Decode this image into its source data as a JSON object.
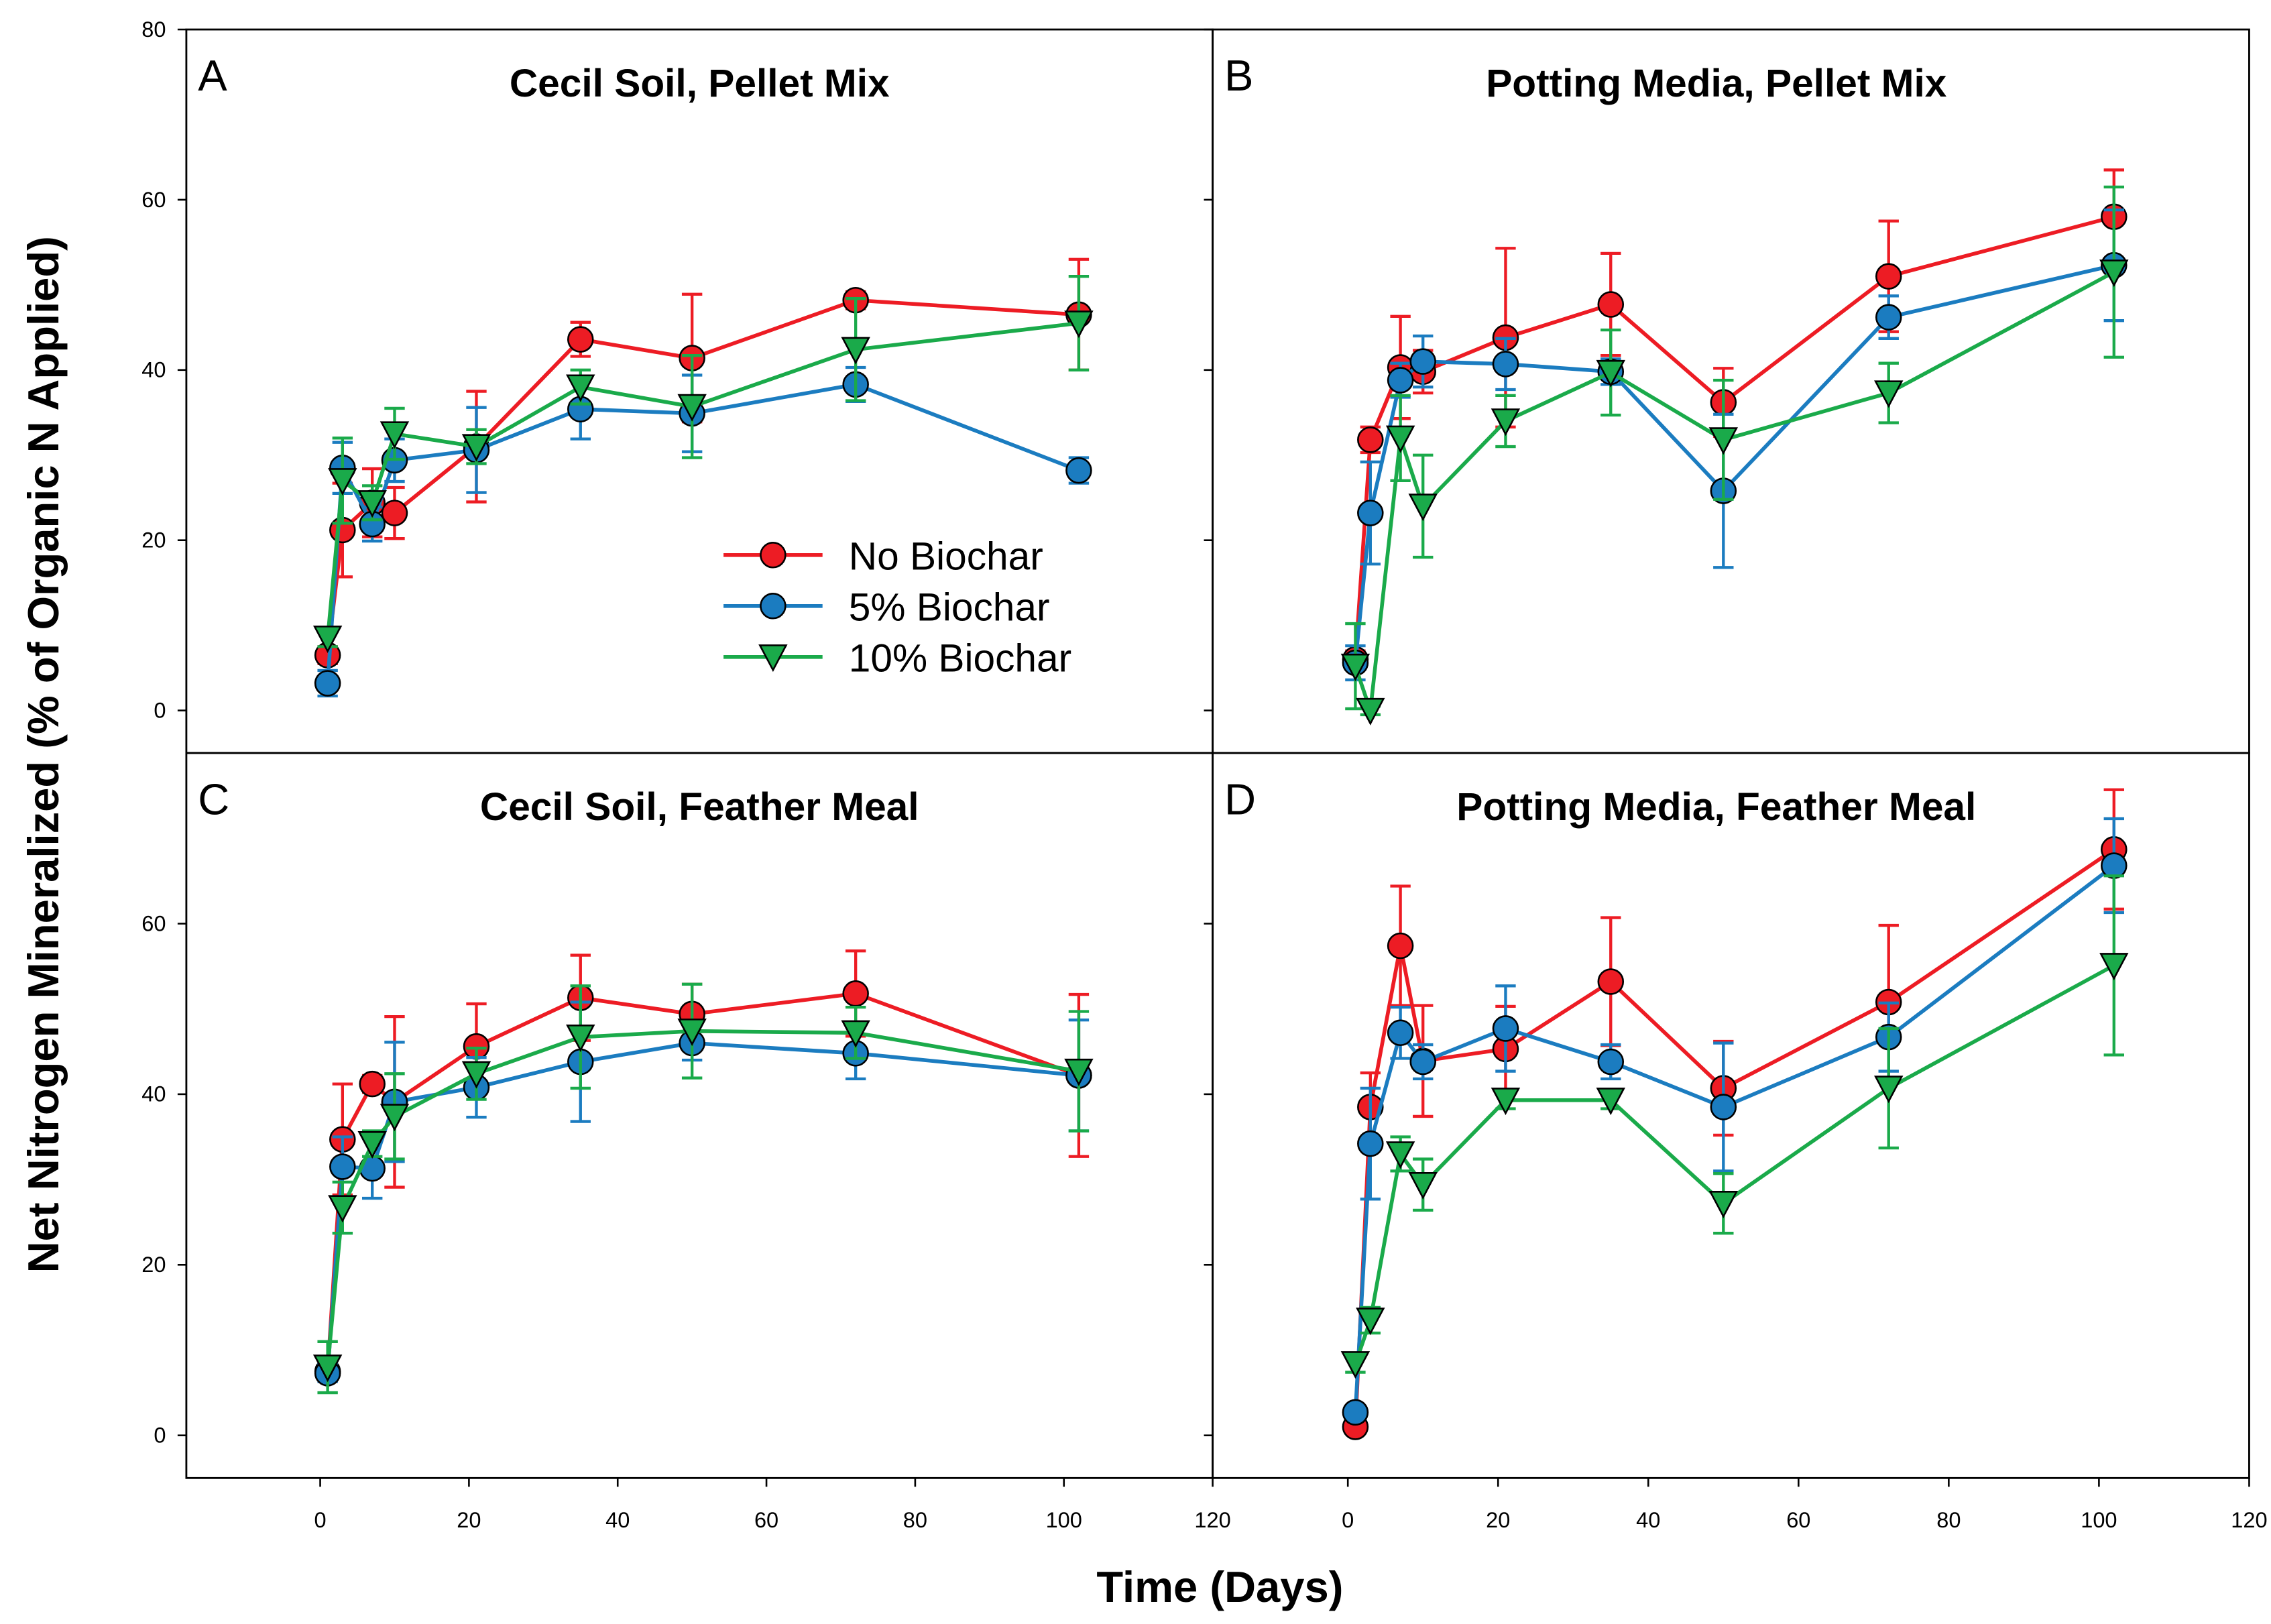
{
  "chart_data": {
    "type": "line",
    "ylabel": "Net Nitrogen Mineralized (% of Organic N Applied)",
    "xlabel": "Time (Days)",
    "xlim": [
      -18,
      120
    ],
    "ylim": [
      -5,
      80
    ],
    "x_ticks": [
      "0",
      "20",
      "40",
      "60",
      "80",
      "100",
      "120"
    ],
    "y_ticks_top": [
      "0",
      "20",
      "40",
      "60",
      "80"
    ],
    "y_ticks_bottom": [
      "0",
      "20",
      "40",
      "60"
    ],
    "x": [
      1,
      3,
      7,
      10,
      21,
      35,
      50,
      72,
      102
    ],
    "legend": {
      "placement": "center-right of panel A",
      "entries": [
        "No Biochar",
        "5% Biochar",
        "10% Biochar"
      ]
    },
    "series_styles": [
      {
        "name": "No Biochar",
        "color": "#ed1c24",
        "marker": "circle"
      },
      {
        "name": "5% Biochar",
        "color": "#1b7cc0",
        "marker": "circle"
      },
      {
        "name": "10% Biochar",
        "color": "#1aaa4a",
        "marker": "triangle-down"
      }
    ],
    "panels": [
      {
        "letter": "A",
        "title": "Cecil Soil, Pellet Mix",
        "series": [
          {
            "name": "No Biochar",
            "values": [
              6.5,
              21.2,
              24.4,
              23.2,
              31,
              43.6,
              41.4,
              48.2,
              46.5
            ],
            "err": [
              1,
              5.5,
              4,
              3,
              6.5,
              2,
              7.5,
              1,
              6.5
            ]
          },
          {
            "name": "5% Biochar",
            "values": [
              3.2,
              28.5,
              21.9,
              29.4,
              30.6,
              35.4,
              34.9,
              38.3,
              28.2
            ],
            "err": [
              1.5,
              3,
              2,
              2.5,
              5,
              3.5,
              4.5,
              2,
              1.5
            ]
          },
          {
            "name": "10% Biochar",
            "values": [
              8.5,
              27,
              24.4,
              32.5,
              31,
              38,
              35.7,
              42.4,
              45.5
            ],
            "err": [
              1,
              5,
              2,
              3,
              2,
              2,
              6,
              6,
              5.5
            ]
          }
        ]
      },
      {
        "letter": "B",
        "title": "Potting Media, Pellet Mix",
        "series": [
          {
            "name": "No Biochar",
            "values": [
              6,
              31.8,
              40.3,
              39.8,
              43.8,
              47.7,
              36.2,
              51,
              58
            ],
            "err": [
              1,
              1.5,
              6,
              2.5,
              10.5,
              6,
              4,
              6.5,
              5.5
            ]
          },
          {
            "name": "5% Biochar",
            "values": [
              5.6,
              23.2,
              38.8,
              41,
              40.7,
              39.8,
              25.8,
              46.2,
              52.3
            ],
            "err": [
              2,
              6,
              2,
              3,
              3,
              1.5,
              9,
              2.5,
              6.5
            ]
          },
          {
            "name": "10% Biochar",
            "values": [
              5.2,
              0,
              32,
              24,
              34,
              39.7,
              31.8,
              37.3,
              51.5
            ],
            "err": [
              5,
              0.5,
              5,
              6,
              3,
              5,
              7,
              3.5,
              10
            ]
          }
        ]
      },
      {
        "letter": "C",
        "title": "Cecil Soil, Feather Meal",
        "series": [
          {
            "name": "No Biochar",
            "values": [
              7.5,
              34.7,
              41.2,
              39.1,
              45.6,
              51.3,
              49.4,
              51.8,
              42.2
            ],
            "err": [
              1,
              6.5,
              1,
              10,
              5,
              5,
              3.5,
              5,
              9.5
            ]
          },
          {
            "name": "5% Biochar",
            "values": [
              7.3,
              31.5,
              31.3,
              39.1,
              40.8,
              43.8,
              46,
              44.8,
              42.2
            ],
            "err": [
              1,
              3.5,
              3.5,
              7,
              3.5,
              7,
              2,
              3,
              6.5
            ]
          },
          {
            "name": "10% Biochar",
            "values": [
              8,
              26.7,
              34.2,
              37.4,
              42.4,
              46.7,
              47.4,
              47.2,
              42.7
            ],
            "err": [
              3,
              3,
              1.5,
              5,
              3,
              6,
              5.5,
              3,
              7
            ]
          }
        ]
      },
      {
        "letter": "D",
        "title": "Potting Media, Feather Meal",
        "series": [
          {
            "name": "No Biochar",
            "values": [
              1,
              38.5,
              57.4,
              43.9,
              45.3,
              53.2,
              40.7,
              50.8,
              68.7
            ],
            "err": [
              0.5,
              4,
              7,
              6.5,
              5,
              7.5,
              5.5,
              9,
              7
            ]
          },
          {
            "name": "5% Biochar",
            "values": [
              2.7,
              34.2,
              47.2,
              43.8,
              47.7,
              43.8,
              38.5,
              46.7,
              66.8
            ],
            "err": [
              0.5,
              6.5,
              3,
              2,
              5,
              2,
              7.5,
              4,
              5.5
            ]
          },
          {
            "name": "10% Biochar",
            "values": [
              8.4,
              13.5,
              33,
              29.4,
              39.3,
              39.3,
              27.2,
              40.7,
              55.1
            ],
            "err": [
              1,
              1.5,
              2,
              3,
              1,
              1,
              3.5,
              7,
              10.5
            ]
          }
        ]
      }
    ]
  }
}
